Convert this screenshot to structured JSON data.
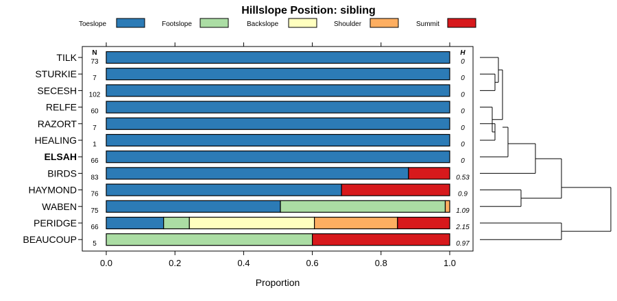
{
  "chart_data": {
    "type": "bar",
    "title": "Hillslope Position: sibling",
    "xlabel": "Proportion",
    "xlim": [
      0,
      1
    ],
    "xticks": [
      "0.0",
      "0.2",
      "0.4",
      "0.6",
      "0.8",
      "1.0"
    ],
    "n_header": "N",
    "h_header": "H",
    "legend_position": "top",
    "series": [
      {
        "name": "Toeslope",
        "color": "#2C7BB6"
      },
      {
        "name": "Footslope",
        "color": "#ABDDA4"
      },
      {
        "name": "Backslope",
        "color": "#FFFFBF"
      },
      {
        "name": "Shoulder",
        "color": "#FDAE61"
      },
      {
        "name": "Summit",
        "color": "#D7191C"
      }
    ],
    "rows": [
      {
        "label": "TILK",
        "n": "73",
        "h": "0",
        "bold": false,
        "values": [
          1,
          0,
          0,
          0,
          0
        ]
      },
      {
        "label": "STURKIE",
        "n": "7",
        "h": "0",
        "bold": false,
        "values": [
          1,
          0,
          0,
          0,
          0
        ]
      },
      {
        "label": "SECESH",
        "n": "102",
        "h": "0",
        "bold": false,
        "values": [
          1,
          0,
          0,
          0,
          0
        ]
      },
      {
        "label": "RELFE",
        "n": "60",
        "h": "0",
        "bold": false,
        "values": [
          1,
          0,
          0,
          0,
          0
        ]
      },
      {
        "label": "RAZORT",
        "n": "7",
        "h": "0",
        "bold": false,
        "values": [
          1,
          0,
          0,
          0,
          0
        ]
      },
      {
        "label": "HEALING",
        "n": "1",
        "h": "0",
        "bold": false,
        "values": [
          1,
          0,
          0,
          0,
          0
        ]
      },
      {
        "label": "ELSAH",
        "n": "66",
        "h": "0",
        "bold": true,
        "values": [
          1,
          0,
          0,
          0,
          0
        ]
      },
      {
        "label": "BIRDS",
        "n": "83",
        "h": "0.53",
        "bold": false,
        "values": [
          0.88,
          0,
          0,
          0,
          0.12
        ]
      },
      {
        "label": "HAYMOND",
        "n": "76",
        "h": "0.9",
        "bold": false,
        "values": [
          0.685,
          0,
          0,
          0,
          0.315
        ]
      },
      {
        "label": "WABEN",
        "n": "75",
        "h": "1.09",
        "bold": false,
        "values": [
          0.507,
          0.48,
          0,
          0.013,
          0
        ]
      },
      {
        "label": "PERIDGE",
        "n": "66",
        "h": "2.15",
        "bold": false,
        "values": [
          0.167,
          0.075,
          0.364,
          0.242,
          0.152
        ]
      },
      {
        "label": "BEAUCOUP",
        "n": "5",
        "h": "0.97",
        "bold": false,
        "values": [
          0,
          0.6,
          0,
          0,
          0.4
        ]
      }
    ]
  }
}
